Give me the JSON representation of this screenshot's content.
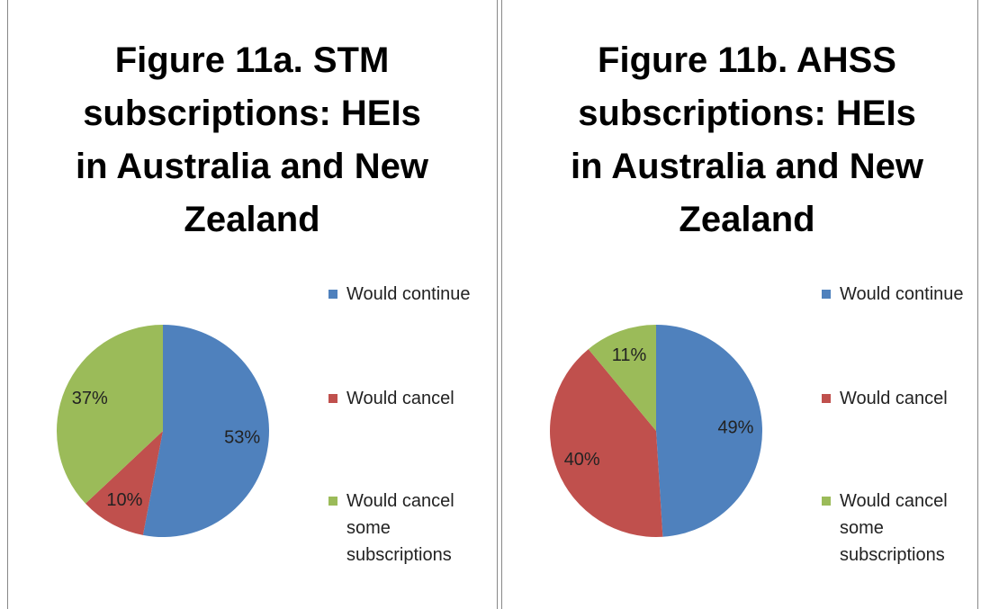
{
  "chart_data": [
    {
      "type": "pie",
      "title": "Figure 11a. STM subscriptions: HEIs\nin Australia and New Zealand",
      "categories": [
        "Would continue",
        "Would cancel",
        "Would cancel some subscriptions"
      ],
      "values": [
        53,
        10,
        37
      ],
      "value_labels": [
        "53%",
        "10%",
        "37%"
      ],
      "colors": [
        "#4f81bd",
        "#c0504d",
        "#9bbb59"
      ],
      "legend": "right"
    },
    {
      "type": "pie",
      "title": "Figure 11b. AHSS subscriptions: HEIs\nin Australia and New Zealand",
      "categories": [
        "Would continue",
        "Would cancel",
        "Would cancel some subscriptions"
      ],
      "values": [
        49,
        40,
        11
      ],
      "value_labels": [
        "49%",
        "40%",
        "11%"
      ],
      "colors": [
        "#4f81bd",
        "#c0504d",
        "#9bbb59"
      ],
      "legend": "right"
    }
  ]
}
